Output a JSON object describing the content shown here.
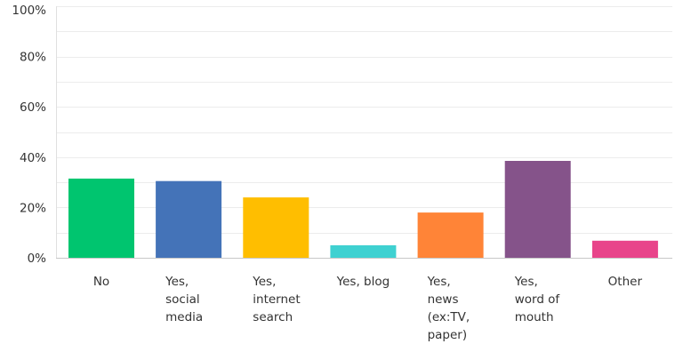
{
  "chart_data": {
    "type": "bar",
    "title": "",
    "xlabel": "",
    "ylabel": "",
    "ylim": [
      0,
      100
    ],
    "y_ticks": [
      "0%",
      "20%",
      "40%",
      "60%",
      "80%",
      "100%"
    ],
    "y_tick_values": [
      0,
      20,
      40,
      60,
      80,
      100
    ],
    "y_gridline_step": 10,
    "grid": true,
    "legend": "none",
    "categories": [
      {
        "label_lines": [
          "No"
        ],
        "value": 31.5,
        "color": "#00c56f"
      },
      {
        "label_lines": [
          "Yes,",
          "social",
          "media"
        ],
        "value": 30.5,
        "color": "#4473b8"
      },
      {
        "label_lines": [
          "Yes,",
          "internet",
          "search"
        ],
        "value": 24.0,
        "color": "#ffbe00"
      },
      {
        "label_lines": [
          "Yes, blog"
        ],
        "value": 5.0,
        "color": "#3fd1d1"
      },
      {
        "label_lines": [
          "Yes,",
          "news",
          "(ex:TV,",
          "paper)"
        ],
        "value": 18.0,
        "color": "#ff8437"
      },
      {
        "label_lines": [
          "Yes,",
          "word of",
          "mouth"
        ],
        "value": 38.5,
        "color": "#85538a"
      },
      {
        "label_lines": [
          "Other"
        ],
        "value": 6.8,
        "color": "#e8448a"
      }
    ]
  }
}
